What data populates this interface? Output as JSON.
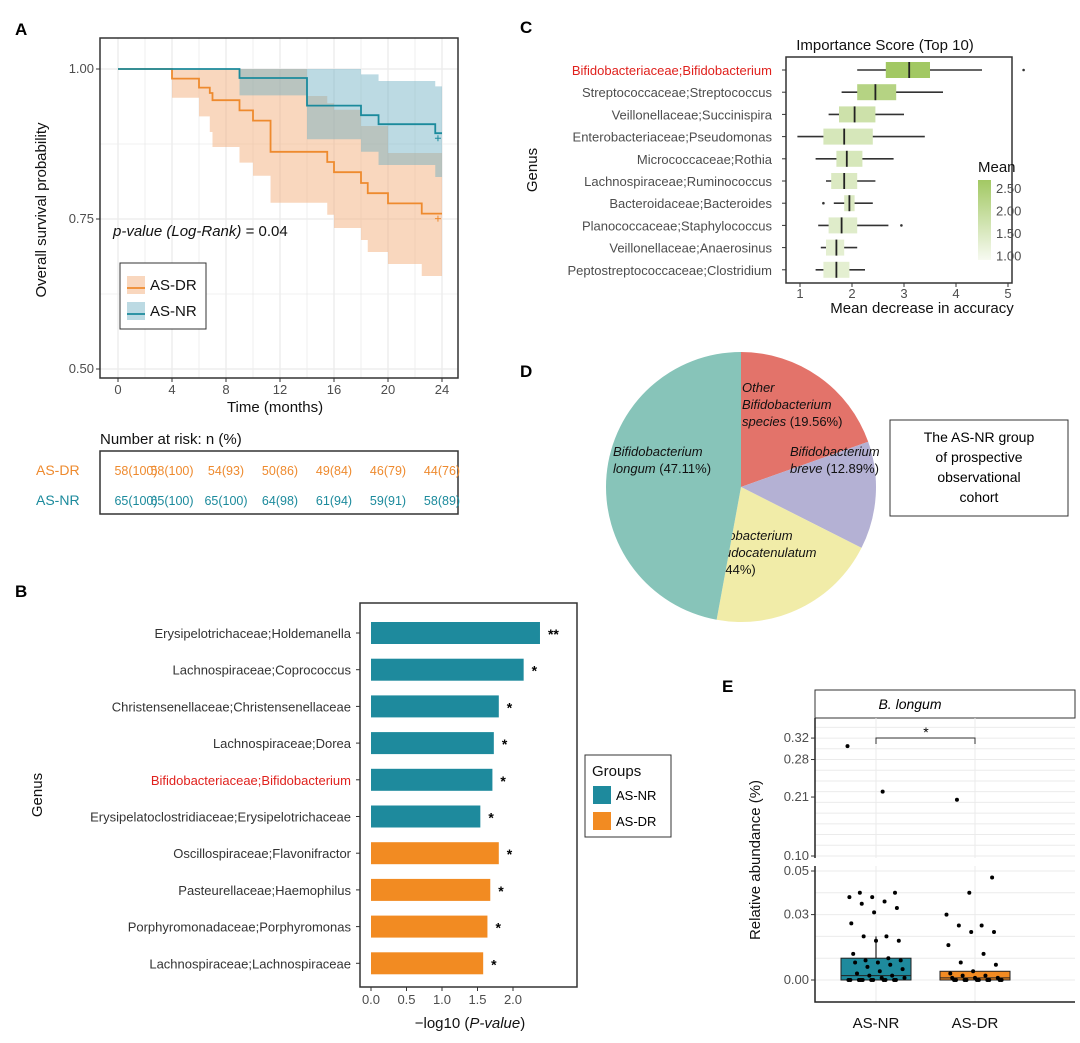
{
  "colors": {
    "as_dr": "#ee8a2e",
    "as_nr": "#1b8a9c",
    "highlight": "#e0211d",
    "bar_nr": "#1e8a9d",
    "bar_dr": "#f28b22"
  },
  "panel_labels": [
    "A",
    "B",
    "C",
    "D",
    "E"
  ],
  "chart_data": [
    {
      "panel": "A",
      "type": "line",
      "ylabel": "Overall survival probability",
      "xlabel": "Time (months)",
      "xticks": [
        0,
        4,
        8,
        12,
        16,
        20,
        24
      ],
      "yticks": [
        "0.50",
        "0.75",
        "1.00"
      ],
      "xlim": [
        0,
        24
      ],
      "ylim": [
        0.5,
        1.0
      ],
      "grid": true,
      "pvalue_label": "p-value (Log-Rank)",
      "pvalue_text": " = 0.04",
      "legend_placement": "bottom-left",
      "series": [
        {
          "name": "AS-DR",
          "key": "as_dr",
          "t": [
            0,
            4,
            6,
            6.8,
            7,
            9,
            10,
            11.3,
            15.5,
            16,
            18,
            18.5,
            20,
            22.5,
            24
          ],
          "s": [
            1,
            0.984,
            0.969,
            0.96,
            0.948,
            0.931,
            0.914,
            0.862,
            0.845,
            0.828,
            0.81,
            0.793,
            0.776,
            0.759,
            0.759
          ],
          "lower": [
            1,
            0.952,
            0.921,
            0.895,
            0.87,
            0.844,
            0.822,
            0.777,
            0.757,
            0.735,
            0.715,
            0.695,
            0.675,
            0.655,
            0.655
          ],
          "upper": [
            1,
            1,
            1,
            1,
            1,
            1,
            1,
            1,
            0.955,
            0.943,
            0.932,
            0.905,
            0.905,
            0.86,
            0.86
          ],
          "upper_t": [
            0,
            4,
            6,
            6.8,
            7,
            9,
            10,
            11.3,
            14,
            15.5,
            16,
            18,
            18.5,
            20,
            24
          ],
          "censor": [
            23.7
          ]
        },
        {
          "name": "AS-NR",
          "key": "as_nr",
          "t": [
            0,
            9,
            14,
            18,
            19.3,
            23.5,
            24
          ],
          "s": [
            1,
            0.985,
            0.939,
            0.923,
            0.908,
            0.893,
            0.893
          ],
          "lower": [
            1,
            0.956,
            0.883,
            0.862,
            0.84,
            0.82,
            0.82
          ],
          "upper": [
            1,
            1,
            1,
            0.991,
            0.98,
            0.971,
            0.971
          ],
          "censor": [
            23.7
          ]
        }
      ],
      "risk_table": {
        "title": "Number at risk: n (%)",
        "rows": [
          {
            "name": "AS-DR",
            "key": "as_dr",
            "values": [
              "58(100)",
              "58(100)",
              "54(93)",
              "50(86)",
              "49(84)",
              "46(79)",
              "44(76)"
            ]
          },
          {
            "name": "AS-NR",
            "key": "as_nr",
            "values": [
              "65(100)",
              "65(100)",
              "65(100)",
              "64(98)",
              "61(94)",
              "59(91)",
              "58(89)"
            ]
          }
        ]
      }
    },
    {
      "panel": "B",
      "type": "bar",
      "orientation": "horizontal",
      "ylabel": "Genus",
      "xlabel_prefix": "−log10 (",
      "xlabel_italic": "P-value",
      "xlabel_suffix": ")",
      "xticks": [
        "0.0",
        "0.5",
        "1.0",
        "1.5",
        "2.0"
      ],
      "xlim": [
        0,
        2.5
      ],
      "categories": [
        "Erysipelotrichaceae;Holdemanella",
        "Lachnospiraceae;Coprococcus",
        "Christensenellaceae;Christensenellaceae",
        "Lachnospiraceae;Dorea",
        "Bifidobacteriaceae;Bifidobacterium",
        "Erysipelatoclostridiaceae;Erysipelotrichaceae",
        "Oscillospiraceae;Flavonifractor",
        "Pasteurellaceae;Haemophilus",
        "Porphyromonadaceae;Porphyromonas",
        "Lachnospiraceae;Lachnospiraceae"
      ],
      "values": [
        2.38,
        2.15,
        1.8,
        1.73,
        1.71,
        1.54,
        1.8,
        1.68,
        1.64,
        1.58
      ],
      "groups": [
        "AS-NR",
        "AS-NR",
        "AS-NR",
        "AS-NR",
        "AS-NR",
        "AS-NR",
        "AS-DR",
        "AS-DR",
        "AS-DR",
        "AS-DR"
      ],
      "significance": [
        "**",
        "*",
        "*",
        "*",
        "*",
        "*",
        "*",
        "*",
        "*",
        "*"
      ],
      "highlight_index": 4,
      "legend": {
        "title": "Groups",
        "entries": [
          "AS-NR",
          "AS-DR"
        ],
        "placement": "right"
      }
    },
    {
      "panel": "C",
      "type": "boxplot",
      "orientation": "horizontal",
      "title": "Importance Score (Top 10)",
      "ylabel": "Genus",
      "xlabel": "Mean decrease in accuracy",
      "xticks": [
        1,
        2,
        3,
        4,
        5
      ],
      "xlim": [
        0.75,
        5.4
      ],
      "categories": [
        "Bifidobacteriaceae;Bifidobacterium",
        "Streptococcaceae;Streptococcus",
        "Veillonellaceae;Succinispira",
        "Enterobacteriaceae;Pseudomonas",
        "Micrococcaceae;Rothia",
        "Lachnospiraceae;Ruminococcus",
        "Bacteroidaceae;Bacteroides",
        "Planococcaceae;Staphylococcus",
        "Veillonellaceae;Anaerosinus",
        "Peptostreptococcaceae;Clostridium"
      ],
      "boxes": [
        {
          "min": 2.1,
          "q1": 2.65,
          "median": 3.1,
          "q3": 3.5,
          "max": 4.5,
          "outliers": [
            5.3
          ],
          "mean": 2.7
        },
        {
          "min": 1.8,
          "q1": 2.1,
          "median": 2.45,
          "q3": 2.85,
          "max": 3.75,
          "outliers": [],
          "mean": 2.3
        },
        {
          "min": 1.55,
          "q1": 1.75,
          "median": 2.05,
          "q3": 2.45,
          "max": 3.0,
          "outliers": [],
          "mean": 1.8
        },
        {
          "min": 0.95,
          "q1": 1.45,
          "median": 1.85,
          "q3": 2.4,
          "max": 3.4,
          "outliers": [],
          "mean": 1.6
        },
        {
          "min": 1.3,
          "q1": 1.7,
          "median": 1.9,
          "q3": 2.2,
          "max": 2.8,
          "outliers": [],
          "mean": 1.6
        },
        {
          "min": 1.5,
          "q1": 1.6,
          "median": 1.85,
          "q3": 2.1,
          "max": 2.45,
          "outliers": [],
          "mean": 1.5
        },
        {
          "min": 1.65,
          "q1": 1.85,
          "median": 1.95,
          "q3": 2.05,
          "max": 2.4,
          "outliers": [
            1.45
          ],
          "mean": 1.5
        },
        {
          "min": 1.35,
          "q1": 1.55,
          "median": 1.8,
          "q3": 2.1,
          "max": 2.7,
          "outliers": [
            2.95
          ],
          "mean": 1.4
        },
        {
          "min": 1.4,
          "q1": 1.5,
          "median": 1.7,
          "q3": 1.85,
          "max": 2.1,
          "outliers": [],
          "mean": 1.3
        },
        {
          "min": 1.3,
          "q1": 1.45,
          "median": 1.7,
          "q3": 1.95,
          "max": 2.25,
          "outliers": [],
          "mean": 1.3
        }
      ],
      "highlight_index": 0,
      "colorbar": {
        "title": "Mean",
        "ticks": [
          "2.50",
          "2.00",
          "1.50",
          "1.00"
        ],
        "range": [
          0.9,
          2.7
        ],
        "low_color": "#f7faf1",
        "high_color": "#a2c863"
      }
    },
    {
      "panel": "D",
      "type": "pie",
      "slices": [
        {
          "value": 19.56,
          "color": "#e3736a",
          "lines": [
            [
              [
                "Other",
                true
              ]
            ],
            [
              [
                "Bifidobacterium",
                true
              ]
            ],
            [
              [
                "species",
                true
              ],
              [
                " (19.56%)",
                false
              ]
            ]
          ]
        },
        {
          "value": 12.89,
          "color": "#b4b1d4",
          "lines": [
            [
              [
                "Bifidobacterium",
                true
              ]
            ],
            [
              [
                "breve",
                true
              ],
              [
                " (12.89%)",
                false
              ]
            ]
          ]
        },
        {
          "value": 20.44,
          "color": "#f1eca8",
          "lines": [
            [
              [
                "Bifidobacterium",
                true
              ]
            ],
            [
              [
                "pseudocatenulatum",
                true
              ]
            ],
            [
              [
                "(20.44%)",
                false
              ]
            ]
          ]
        },
        {
          "value": 47.11,
          "color": "#87c4b9",
          "lines": [
            [
              [
                "Bifidobacterium",
                true
              ]
            ],
            [
              [
                "longum",
                true
              ],
              [
                " (47.11%)",
                false
              ]
            ]
          ]
        }
      ],
      "note_lines": [
        "The AS-NR group",
        "of prospective",
        "observational",
        "cohort"
      ]
    },
    {
      "panel": "E",
      "type": "boxplot",
      "facet_title": "B. longum",
      "ylabel": "Relative abundance (%)",
      "categories": [
        "AS-NR",
        "AS-DR"
      ],
      "yticks_upper": [
        "0.32",
        "0.28",
        "0.21",
        "0.10"
      ],
      "yticks_lower": [
        "0.05",
        "0.03",
        "0.00"
      ],
      "significance": "*",
      "boxes": [
        {
          "q1": 0,
          "median": 0.002,
          "q3": 0.01,
          "min": 0,
          "max": 0.02,
          "color": "#1e8a9d",
          "points": [
            0.305,
            0.22,
            0.04,
            0.04,
            0.038,
            0.038,
            0.036,
            0.035,
            0.033,
            0.031,
            0.026,
            0.02,
            0.02,
            0.018,
            0.018,
            0.012,
            0.01,
            0.009,
            0.009,
            0.008,
            0.008,
            0.007,
            0.006,
            0.005,
            0.004,
            0.003,
            0.002,
            0.002,
            0.001,
            0.001,
            0,
            0,
            0,
            0,
            0,
            0,
            0,
            0,
            0,
            0,
            0
          ]
        },
        {
          "q1": 0,
          "median": 0.001,
          "q3": 0.004,
          "min": 0,
          "max": 0.004,
          "color": "#f28b22",
          "points": [
            0.205,
            0.047,
            0.04,
            0.03,
            0.025,
            0.025,
            0.022,
            0.022,
            0.016,
            0.012,
            0.008,
            0.007,
            0.004,
            0.003,
            0.002,
            0.002,
            0.001,
            0.001,
            0.001,
            0,
            0,
            0,
            0,
            0,
            0,
            0,
            0,
            0,
            0
          ]
        }
      ]
    }
  ]
}
